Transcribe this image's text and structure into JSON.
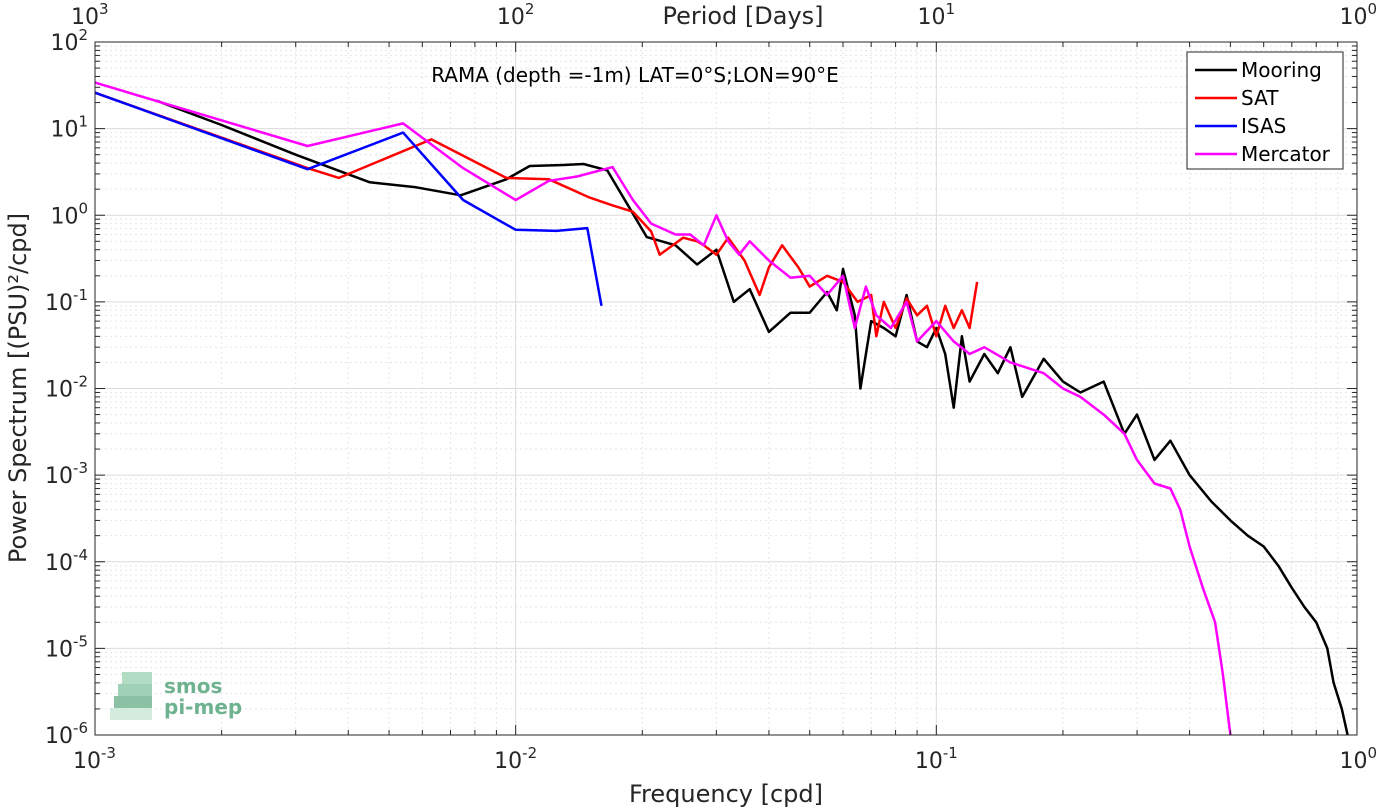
{
  "chart_data": {
    "type": "line",
    "title": "RAMA (depth =-1m) LAT=0°S;LON=90°E",
    "xlabel": "Frequency [cpd]",
    "ylabel": "Power Spectrum [(PSU)²/cpd]",
    "top_axis_label": "Period [Days]",
    "x_scale": "log",
    "y_scale": "log",
    "xlim": [
      0.001,
      1
    ],
    "ylim": [
      1e-06,
      100
    ],
    "grid": true,
    "legend_position": "top-right",
    "x_ticks": [
      {
        "value": 0.001,
        "base": "10",
        "exp": "-3"
      },
      {
        "value": 0.01,
        "base": "10",
        "exp": "-2"
      },
      {
        "value": 0.1,
        "base": "10",
        "exp": "-1"
      },
      {
        "value": 1,
        "base": "10",
        "exp": "0"
      }
    ],
    "top_ticks": [
      {
        "value": 0.001,
        "base": "10",
        "exp": "3"
      },
      {
        "value": 0.01,
        "base": "10",
        "exp": "2"
      },
      {
        "value": 0.1,
        "base": "10",
        "exp": "1"
      },
      {
        "value": 1,
        "base": "10",
        "exp": "0"
      }
    ],
    "y_ticks": [
      {
        "value": 100,
        "base": "10",
        "exp": "2"
      },
      {
        "value": 10,
        "base": "10",
        "exp": "1"
      },
      {
        "value": 1,
        "base": "10",
        "exp": "0"
      },
      {
        "value": 0.1,
        "base": "10",
        "exp": "-1"
      },
      {
        "value": 0.01,
        "base": "10",
        "exp": "-2"
      },
      {
        "value": 0.001,
        "base": "10",
        "exp": "-3"
      },
      {
        "value": 0.0001,
        "base": "10",
        "exp": "-4"
      },
      {
        "value": 1e-05,
        "base": "10",
        "exp": "-5"
      },
      {
        "value": 1e-06,
        "base": "10",
        "exp": "-6"
      }
    ],
    "series": [
      {
        "name": "Mooring",
        "color": "#000000",
        "points": [
          [
            0.0014,
            21
          ],
          [
            0.002,
            11
          ],
          [
            0.003,
            5
          ],
          [
            0.0045,
            2.4
          ],
          [
            0.0058,
            2.1
          ],
          [
            0.0074,
            1.7
          ],
          [
            0.0095,
            2.6
          ],
          [
            0.0108,
            3.7
          ],
          [
            0.013,
            3.8
          ],
          [
            0.0145,
            3.9
          ],
          [
            0.0165,
            3.3
          ],
          [
            0.0205,
            0.56
          ],
          [
            0.024,
            0.45
          ],
          [
            0.027,
            0.27
          ],
          [
            0.03,
            0.4
          ],
          [
            0.033,
            0.1
          ],
          [
            0.036,
            0.14
          ],
          [
            0.04,
            0.045
          ],
          [
            0.045,
            0.075
          ],
          [
            0.05,
            0.075
          ],
          [
            0.055,
            0.13
          ],
          [
            0.058,
            0.08
          ],
          [
            0.06,
            0.24
          ],
          [
            0.064,
            0.07
          ],
          [
            0.066,
            0.01
          ],
          [
            0.07,
            0.06
          ],
          [
            0.075,
            0.05
          ],
          [
            0.08,
            0.04
          ],
          [
            0.085,
            0.12
          ],
          [
            0.09,
            0.035
          ],
          [
            0.095,
            0.03
          ],
          [
            0.1,
            0.05
          ],
          [
            0.105,
            0.025
          ],
          [
            0.11,
            0.006
          ],
          [
            0.115,
            0.04
          ],
          [
            0.12,
            0.012
          ],
          [
            0.13,
            0.025
          ],
          [
            0.14,
            0.015
          ],
          [
            0.15,
            0.03
          ],
          [
            0.16,
            0.008
          ],
          [
            0.18,
            0.022
          ],
          [
            0.2,
            0.012
          ],
          [
            0.22,
            0.009
          ],
          [
            0.25,
            0.012
          ],
          [
            0.28,
            0.003
          ],
          [
            0.3,
            0.005
          ],
          [
            0.33,
            0.0015
          ],
          [
            0.36,
            0.0025
          ],
          [
            0.4,
            0.001
          ],
          [
            0.45,
            0.0005
          ],
          [
            0.5,
            0.0003
          ],
          [
            0.55,
            0.0002
          ],
          [
            0.6,
            0.00015
          ],
          [
            0.65,
            9e-05
          ],
          [
            0.7,
            5e-05
          ],
          [
            0.75,
            3e-05
          ],
          [
            0.8,
            2e-05
          ],
          [
            0.85,
            1e-05
          ],
          [
            0.88,
            4e-06
          ],
          [
            0.92,
            2e-06
          ],
          [
            0.95,
            1e-06
          ]
        ]
      },
      {
        "name": "SAT",
        "color": "#ff0000",
        "points": [
          [
            0.001,
            26
          ],
          [
            0.0032,
            3.5
          ],
          [
            0.0038,
            2.7
          ],
          [
            0.0063,
            7.5
          ],
          [
            0.0095,
            2.7
          ],
          [
            0.012,
            2.6
          ],
          [
            0.015,
            1.6
          ],
          [
            0.017,
            1.3
          ],
          [
            0.019,
            1.1
          ],
          [
            0.021,
            0.65
          ],
          [
            0.022,
            0.35
          ],
          [
            0.025,
            0.55
          ],
          [
            0.027,
            0.5
          ],
          [
            0.028,
            0.45
          ],
          [
            0.03,
            0.35
          ],
          [
            0.032,
            0.55
          ],
          [
            0.035,
            0.3
          ],
          [
            0.038,
            0.12
          ],
          [
            0.04,
            0.25
          ],
          [
            0.043,
            0.45
          ],
          [
            0.047,
            0.25
          ],
          [
            0.05,
            0.15
          ],
          [
            0.055,
            0.2
          ],
          [
            0.06,
            0.17
          ],
          [
            0.065,
            0.1
          ],
          [
            0.07,
            0.12
          ],
          [
            0.072,
            0.04
          ],
          [
            0.075,
            0.1
          ],
          [
            0.08,
            0.05
          ],
          [
            0.085,
            0.11
          ],
          [
            0.09,
            0.07
          ],
          [
            0.095,
            0.09
          ],
          [
            0.1,
            0.04
          ],
          [
            0.105,
            0.09
          ],
          [
            0.11,
            0.05
          ],
          [
            0.115,
            0.08
          ],
          [
            0.12,
            0.05
          ],
          [
            0.125,
            0.17
          ]
        ]
      },
      {
        "name": "ISAS",
        "color": "#0000ff",
        "points": [
          [
            0.001,
            26
          ],
          [
            0.0032,
            3.4
          ],
          [
            0.0054,
            9
          ],
          [
            0.0075,
            1.5
          ],
          [
            0.01,
            0.68
          ],
          [
            0.0125,
            0.66
          ],
          [
            0.0148,
            0.71
          ],
          [
            0.016,
            0.09
          ]
        ]
      },
      {
        "name": "Mercator",
        "color": "#ff00ff",
        "points": [
          [
            0.001,
            34
          ],
          [
            0.0032,
            6.3
          ],
          [
            0.0054,
            11.5
          ],
          [
            0.0075,
            3.5
          ],
          [
            0.01,
            1.5
          ],
          [
            0.012,
            2.5
          ],
          [
            0.014,
            2.8
          ],
          [
            0.017,
            3.6
          ],
          [
            0.019,
            1.5
          ],
          [
            0.021,
            0.8
          ],
          [
            0.024,
            0.6
          ],
          [
            0.026,
            0.6
          ],
          [
            0.028,
            0.45
          ],
          [
            0.03,
            1
          ],
          [
            0.032,
            0.5
          ],
          [
            0.034,
            0.35
          ],
          [
            0.036,
            0.5
          ],
          [
            0.04,
            0.3
          ],
          [
            0.045,
            0.19
          ],
          [
            0.05,
            0.2
          ],
          [
            0.055,
            0.12
          ],
          [
            0.06,
            0.2
          ],
          [
            0.064,
            0.05
          ],
          [
            0.068,
            0.15
          ],
          [
            0.072,
            0.07
          ],
          [
            0.078,
            0.05
          ],
          [
            0.085,
            0.1
          ],
          [
            0.09,
            0.035
          ],
          [
            0.1,
            0.06
          ],
          [
            0.11,
            0.035
          ],
          [
            0.12,
            0.025
          ],
          [
            0.13,
            0.03
          ],
          [
            0.15,
            0.02
          ],
          [
            0.18,
            0.015
          ],
          [
            0.2,
            0.01
          ],
          [
            0.22,
            0.008
          ],
          [
            0.25,
            0.005
          ],
          [
            0.28,
            0.003
          ],
          [
            0.3,
            0.0015
          ],
          [
            0.33,
            0.0008
          ],
          [
            0.36,
            0.0007
          ],
          [
            0.38,
            0.0004
          ],
          [
            0.4,
            0.00015
          ],
          [
            0.43,
            5e-05
          ],
          [
            0.46,
            2e-05
          ],
          [
            0.48,
            5e-06
          ],
          [
            0.5,
            1e-06
          ]
        ]
      }
    ]
  },
  "logo": {
    "line1": "smos",
    "line2": "pi-mep",
    "color": "#6fb28f"
  }
}
